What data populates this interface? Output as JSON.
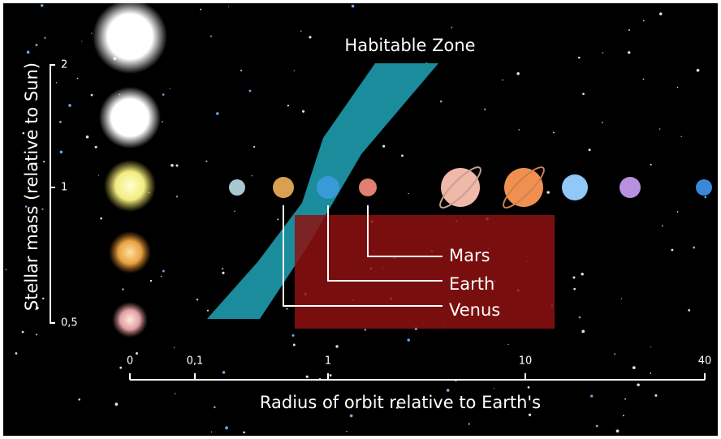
{
  "title": "Habitable Zone",
  "y_axis": {
    "label": "Stellar mass (relative to Sun)",
    "ticks": [
      "2",
      "1",
      "0,5"
    ]
  },
  "x_axis": {
    "label": "Radius of orbit relative to Earth's",
    "ticks": [
      "0",
      "0,1",
      "1",
      "10",
      "40"
    ]
  },
  "planets": [
    {
      "label": "Mars"
    },
    {
      "label": "Earth"
    },
    {
      "label": "Venus"
    }
  ]
}
